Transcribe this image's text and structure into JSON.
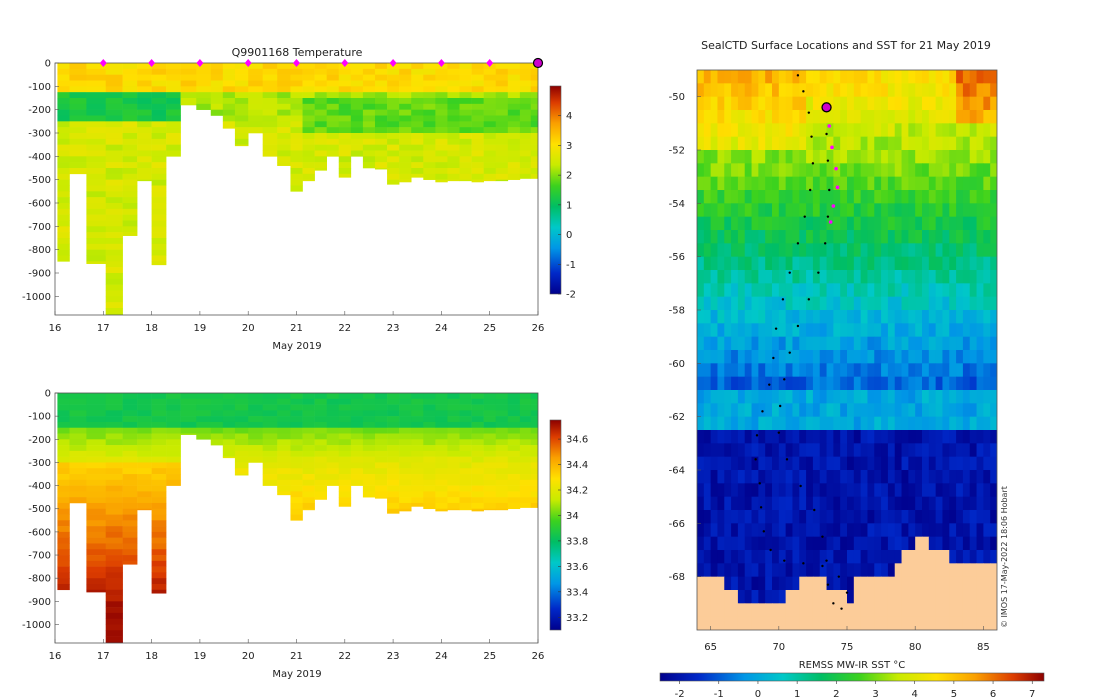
{
  "figure": {
    "credit": "© IMOS 17-May-2022 18:06 Hobart"
  },
  "chart_data": [
    {
      "type": "heatmap",
      "title": "Q9901168  Temperature",
      "xlabel": "May 2019",
      "ylabel": "",
      "x_ticks": [
        "16",
        "17",
        "18",
        "19",
        "20",
        "21",
        "22",
        "23",
        "24",
        "25",
        "26"
      ],
      "xlim": [
        16,
        26
      ],
      "y_ticks": [
        "0",
        "-100",
        "-200",
        "-300",
        "-400",
        "-500",
        "-600",
        "-700",
        "-800",
        "-900",
        "-1000"
      ],
      "ylim": [
        -1080,
        0
      ],
      "colorbar": {
        "label": "",
        "min": -2,
        "max": 5,
        "ticks": [
          "-2",
          "-1",
          "0",
          "1",
          "2",
          "3",
          "4"
        ]
      },
      "profile_markers": [
        17,
        18,
        19,
        20,
        21,
        22,
        23,
        24,
        25
      ],
      "latest_marker": 26,
      "profiles": [
        {
          "t": 16.15,
          "depth": 850
        },
        {
          "t": 16.45,
          "depth": 475
        },
        {
          "t": 16.85,
          "depth": 860
        },
        {
          "t": 17.25,
          "depth": 1080
        },
        {
          "t": 17.55,
          "depth": 740
        },
        {
          "t": 17.85,
          "depth": 505
        },
        {
          "t": 18.15,
          "depth": 865
        },
        {
          "t": 18.45,
          "depth": 400
        },
        {
          "t": 18.75,
          "depth": 180
        },
        {
          "t": 19.1,
          "depth": 200
        },
        {
          "t": 19.35,
          "depth": 225
        },
        {
          "t": 19.6,
          "depth": 280
        },
        {
          "t": 19.85,
          "depth": 355
        },
        {
          "t": 20.15,
          "depth": 300
        },
        {
          "t": 20.45,
          "depth": 400
        },
        {
          "t": 20.75,
          "depth": 440
        },
        {
          "t": 21.0,
          "depth": 550
        },
        {
          "t": 21.25,
          "depth": 505
        },
        {
          "t": 21.5,
          "depth": 460
        },
        {
          "t": 21.75,
          "depth": 400
        },
        {
          "t": 22.0,
          "depth": 490
        },
        {
          "t": 22.25,
          "depth": 400
        },
        {
          "t": 22.5,
          "depth": 450
        },
        {
          "t": 22.75,
          "depth": 455
        },
        {
          "t": 23.0,
          "depth": 520
        },
        {
          "t": 23.25,
          "depth": 510
        },
        {
          "t": 23.5,
          "depth": 490
        },
        {
          "t": 23.75,
          "depth": 500
        },
        {
          "t": 24.0,
          "depth": 510
        },
        {
          "t": 24.25,
          "depth": 505
        },
        {
          "t": 24.5,
          "depth": 505
        },
        {
          "t": 24.75,
          "depth": 510
        },
        {
          "t": 25.0,
          "depth": 505
        },
        {
          "t": 25.25,
          "depth": 505
        },
        {
          "t": 25.5,
          "depth": 500
        },
        {
          "t": 25.75,
          "depth": 495
        },
        {
          "t": 25.95,
          "depth": 495
        }
      ]
    },
    {
      "type": "heatmap",
      "title": "",
      "xlabel": "May 2019",
      "ylabel": "",
      "x_ticks": [
        "16",
        "17",
        "18",
        "19",
        "20",
        "21",
        "22",
        "23",
        "24",
        "25",
        "26"
      ],
      "xlim": [
        16,
        26
      ],
      "y_ticks": [
        "0",
        "-100",
        "-200",
        "-300",
        "-400",
        "-500",
        "-600",
        "-700",
        "-800",
        "-900",
        "-1000"
      ],
      "ylim": [
        -1080,
        0
      ],
      "colorbar": {
        "label": "",
        "min": 33.1,
        "max": 34.75,
        "ticks": [
          "33.2",
          "33.4",
          "33.6",
          "33.8",
          "34",
          "34.2",
          "34.4",
          "34.6"
        ]
      }
    },
    {
      "type": "heatmap",
      "title": "SealCTD Surface Locations and SST for 21 May 2019",
      "xlabel": "",
      "ylabel": "",
      "x_ticks": [
        "65",
        "70",
        "75",
        "80",
        "85"
      ],
      "xlim": [
        64,
        86
      ],
      "y_ticks": [
        "-50",
        "-52",
        "-54",
        "-56",
        "-58",
        "-60",
        "-62",
        "-64",
        "-66",
        "-68"
      ],
      "ylim": [
        -70,
        -49
      ],
      "colorbar": {
        "label": "REMSS MW-IR SST °C",
        "min": -2.5,
        "max": 7.3,
        "ticks": [
          "-2",
          "-1",
          "0",
          "1",
          "2",
          "3",
          "4",
          "5",
          "6",
          "7"
        ]
      },
      "current_position": {
        "lon": 73.5,
        "lat": -50.4
      },
      "recent_positions": [
        {
          "lon": 73.7,
          "lat": -51.1
        },
        {
          "lon": 73.9,
          "lat": -51.9
        },
        {
          "lon": 74.2,
          "lat": -52.7
        },
        {
          "lon": 74.3,
          "lat": -53.4
        },
        {
          "lon": 74.0,
          "lat": -54.1
        },
        {
          "lon": 73.8,
          "lat": -54.7
        }
      ],
      "track": [
        {
          "lon": 71.4,
          "lat": -49.2
        },
        {
          "lon": 71.8,
          "lat": -49.8
        },
        {
          "lon": 72.2,
          "lat": -50.6
        },
        {
          "lon": 72.4,
          "lat": -51.5
        },
        {
          "lon": 72.5,
          "lat": -52.5
        },
        {
          "lon": 72.3,
          "lat": -53.5
        },
        {
          "lon": 71.9,
          "lat": -54.5
        },
        {
          "lon": 71.4,
          "lat": -55.5
        },
        {
          "lon": 70.8,
          "lat": -56.6
        },
        {
          "lon": 70.3,
          "lat": -57.6
        },
        {
          "lon": 69.8,
          "lat": -58.7
        },
        {
          "lon": 69.6,
          "lat": -59.8
        },
        {
          "lon": 69.3,
          "lat": -60.8
        },
        {
          "lon": 68.8,
          "lat": -61.8
        },
        {
          "lon": 68.4,
          "lat": -62.7
        },
        {
          "lon": 68.3,
          "lat": -63.6
        },
        {
          "lon": 68.6,
          "lat": -64.5
        },
        {
          "lon": 68.7,
          "lat": -65.4
        },
        {
          "lon": 68.9,
          "lat": -66.3
        },
        {
          "lon": 69.4,
          "lat": -67.0
        },
        {
          "lon": 70.4,
          "lat": -67.4
        },
        {
          "lon": 71.8,
          "lat": -67.5
        },
        {
          "lon": 73.2,
          "lat": -67.6
        },
        {
          "lon": 74.4,
          "lat": -68.0
        },
        {
          "lon": 75.0,
          "lat": -68.6
        },
        {
          "lon": 74.6,
          "lat": -69.2
        },
        {
          "lon": 74.0,
          "lat": -69.0
        },
        {
          "lon": 73.6,
          "lat": -68.3
        },
        {
          "lon": 73.5,
          "lat": -67.4
        },
        {
          "lon": 73.2,
          "lat": -66.5
        },
        {
          "lon": 72.6,
          "lat": -65.5
        },
        {
          "lon": 71.6,
          "lat": -64.6
        },
        {
          "lon": 70.6,
          "lat": -63.6
        },
        {
          "lon": 70.0,
          "lat": -62.6
        },
        {
          "lon": 70.1,
          "lat": -61.6
        },
        {
          "lon": 70.4,
          "lat": -60.6
        },
        {
          "lon": 70.8,
          "lat": -59.6
        },
        {
          "lon": 71.4,
          "lat": -58.6
        },
        {
          "lon": 72.2,
          "lat": -57.6
        },
        {
          "lon": 72.9,
          "lat": -56.6
        },
        {
          "lon": 73.4,
          "lat": -55.5
        },
        {
          "lon": 73.6,
          "lat": -54.5
        },
        {
          "lon": 73.7,
          "lat": -53.5
        },
        {
          "lon": 73.6,
          "lat": -52.4
        },
        {
          "lon": 73.5,
          "lat": -51.4
        },
        {
          "lon": 73.5,
          "lat": -50.4
        }
      ]
    }
  ]
}
